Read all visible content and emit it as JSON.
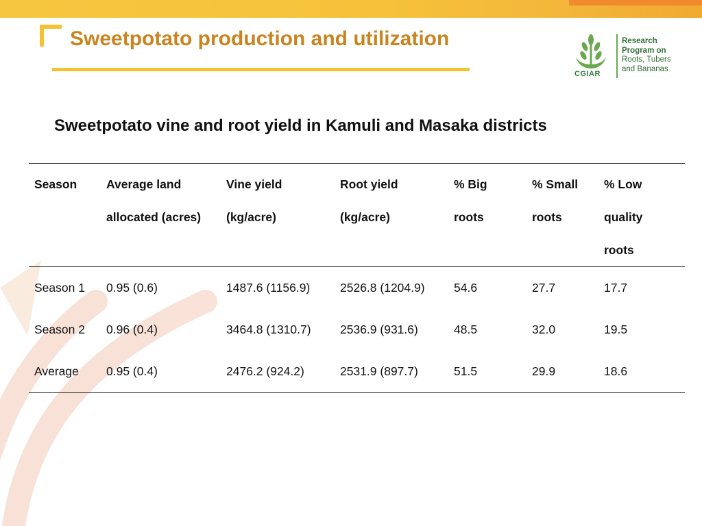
{
  "header": {
    "title": "Sweetpotato production and utilization",
    "colors": {
      "title": "#c9841f",
      "accent": "#f5c331",
      "bar": "#f6c23a",
      "bar_right": "#f08a2c"
    }
  },
  "logo": {
    "emblem_icon": "cgiar-wheat-emblem-icon",
    "brand": "CGIAR",
    "lines": [
      "Research",
      "Program on",
      "Roots, Tubers",
      "and Bananas"
    ]
  },
  "subtitle": "Sweetpotato vine and root yield in Kamuli and Masaka districts",
  "table": {
    "headers": [
      {
        "lines": [
          "Season"
        ]
      },
      {
        "lines": [
          "Average land",
          "allocated (acres)"
        ]
      },
      {
        "lines": [
          "Vine yield",
          "(kg/acre)"
        ]
      },
      {
        "lines": [
          "Root yield",
          "(kg/acre)"
        ]
      },
      {
        "lines": [
          "% Big",
          "roots"
        ]
      },
      {
        "lines": [
          "% Small",
          "roots"
        ]
      },
      {
        "lines": [
          "% Low",
          "quality",
          "roots"
        ]
      }
    ],
    "rows": [
      [
        "Season 1",
        "0.95 (0.6)",
        "1487.6 (1156.9)",
        "2526.8 (1204.9)",
        "54.6",
        "27.7",
        "17.7"
      ],
      [
        "Season 2",
        "0.96 (0.4)",
        "3464.8 (1310.7)",
        "2536.9 (931.6)",
        "48.5",
        "32.0",
        "19.5"
      ],
      [
        "Average",
        "0.95 (0.4)",
        "2476.2 (924.2)",
        "2531.9 (897.7)",
        "51.5",
        "29.9",
        "18.6"
      ]
    ]
  }
}
